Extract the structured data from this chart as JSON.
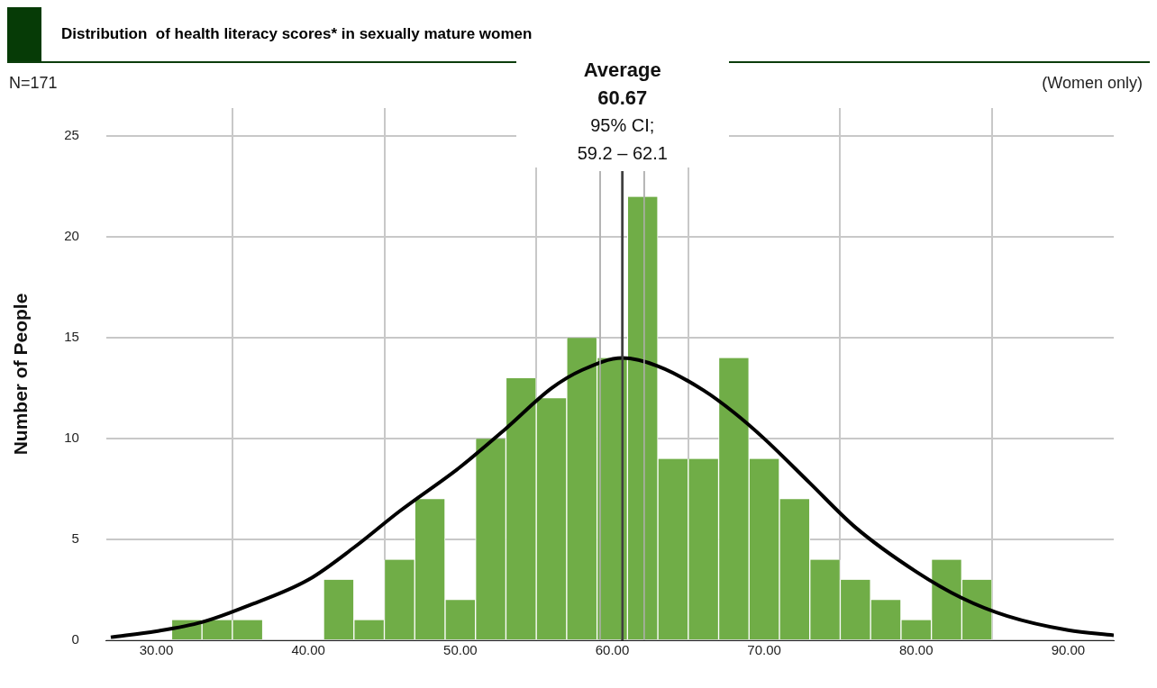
{
  "chart_data": {
    "type": "histogram",
    "title": "Distribution  of health literacy scores* in sexually mature women",
    "ylabel": "Number of People",
    "annotations": [
      "N=171",
      "(Women only)",
      "Average",
      "60.67",
      "95% CI;",
      "59.2 – 62.1"
    ],
    "bins": [
      31,
      33,
      35,
      37,
      39,
      41,
      43,
      45,
      47,
      49,
      51,
      53,
      55,
      57,
      59,
      61,
      63,
      65,
      67,
      69,
      71,
      73,
      75,
      77,
      79,
      81,
      83,
      85
    ],
    "values": [
      1,
      1,
      1,
      0,
      0,
      3,
      1,
      4,
      7,
      2,
      10,
      13,
      12,
      15,
      14,
      22,
      9,
      9,
      14,
      9,
      7,
      4,
      3,
      2,
      1,
      4,
      3
    ],
    "color": "#70ad47",
    "series": [
      {
        "type": "line",
        "color": "#000000",
        "x": [
          27,
          30,
          33,
          36,
          40,
          43,
          46,
          50,
          53,
          56,
          58,
          60.67,
          63,
          66,
          68,
          70,
          73,
          76,
          80,
          83,
          86,
          90,
          93
        ],
        "values": [
          0.15,
          0.45,
          0.9,
          1.7,
          3.0,
          4.6,
          6.4,
          8.6,
          10.5,
          12.5,
          13.4,
          14,
          13.6,
          12.4,
          11.3,
          10.0,
          7.8,
          5.6,
          3.4,
          2.1,
          1.2,
          0.5,
          0.25
        ]
      }
    ],
    "ref_lines": [
      {
        "axis": "x",
        "value": 60.67,
        "label": null,
        "color": "#404040"
      },
      {
        "axis": "x",
        "value": 59.2,
        "label": null,
        "color": "#b0b0b0"
      },
      {
        "axis": "x",
        "value": 62.1,
        "label": null,
        "color": "#b0b0b0"
      }
    ],
    "xlim": [
      26.7,
      93
    ],
    "xticks": [
      {
        "value": 30,
        "label": "30.00"
      },
      {
        "value": 40,
        "label": "40.00"
      },
      {
        "value": 50,
        "label": "50.00"
      },
      {
        "value": 60,
        "label": "60.00"
      },
      {
        "value": 70,
        "label": "70.00"
      },
      {
        "value": 80,
        "label": "80.00"
      },
      {
        "value": 90,
        "label": "90.00"
      }
    ],
    "ylim": [
      0,
      26.4
    ],
    "yticks": [
      0,
      5,
      10,
      15,
      20,
      25
    ],
    "grid": true,
    "legend": false
  }
}
